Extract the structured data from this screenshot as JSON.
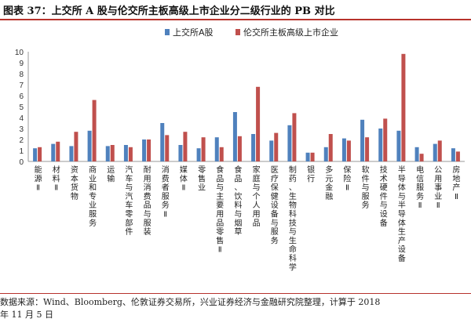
{
  "figure": {
    "title": "图表 37：上交所 A 股与伦交所主板高级上市企业分二级行业的 PB 对比",
    "source_line1": "数据来源：Wind、Bloomberg、伦敦证券交易所，兴业证券经济与金融研究院整理，计算于 2018",
    "source_line2": "年 11 月 5 日"
  },
  "chart_data": {
    "type": "bar",
    "categories": [
      "能源Ⅱ",
      "材料Ⅱ",
      "资本货物",
      "商业和专业服务",
      "运输",
      "汽车与汽车零部件",
      "耐用消费品与服装",
      "消费者服务Ⅱ",
      "媒体Ⅱ",
      "零售业",
      "食品与主要用品零售Ⅱ",
      "食品、饮料与烟草",
      "家庭与个人用品",
      "医疗保健设备与服务",
      "制药、生物科技与生命科学",
      "银行",
      "多元金融",
      "保险Ⅱ",
      "软件与服务",
      "技术硬件与设备",
      "半导体与半导体生产设备",
      "电信服务Ⅱ",
      "公用事业Ⅱ",
      "房地产Ⅱ"
    ],
    "series": [
      {
        "name": "上交所A股",
        "color": "#4f81bd",
        "values": [
          1.2,
          1.6,
          1.4,
          2.8,
          1.4,
          1.5,
          2.0,
          3.5,
          1.5,
          1.2,
          2.2,
          4.5,
          2.5,
          1.9,
          3.3,
          0.8,
          1.3,
          2.1,
          3.8,
          3.0,
          2.8,
          1.3,
          1.6,
          1.2
        ]
      },
      {
        "name": "伦交所主板高级上市企业",
        "color": "#c0504d",
        "values": [
          1.3,
          1.8,
          2.7,
          5.6,
          1.5,
          1.3,
          2.0,
          2.4,
          2.7,
          2.2,
          1.3,
          2.3,
          6.8,
          2.6,
          4.4,
          0.8,
          2.5,
          1.9,
          2.2,
          3.9,
          9.8,
          0.7,
          1.9,
          0.9
        ]
      }
    ],
    "ylim": [
      0,
      10
    ],
    "yticks": [
      0,
      1,
      2,
      3,
      4,
      5,
      6,
      7,
      8,
      9,
      10
    ],
    "legend_position": "top-center",
    "grid": false
  }
}
